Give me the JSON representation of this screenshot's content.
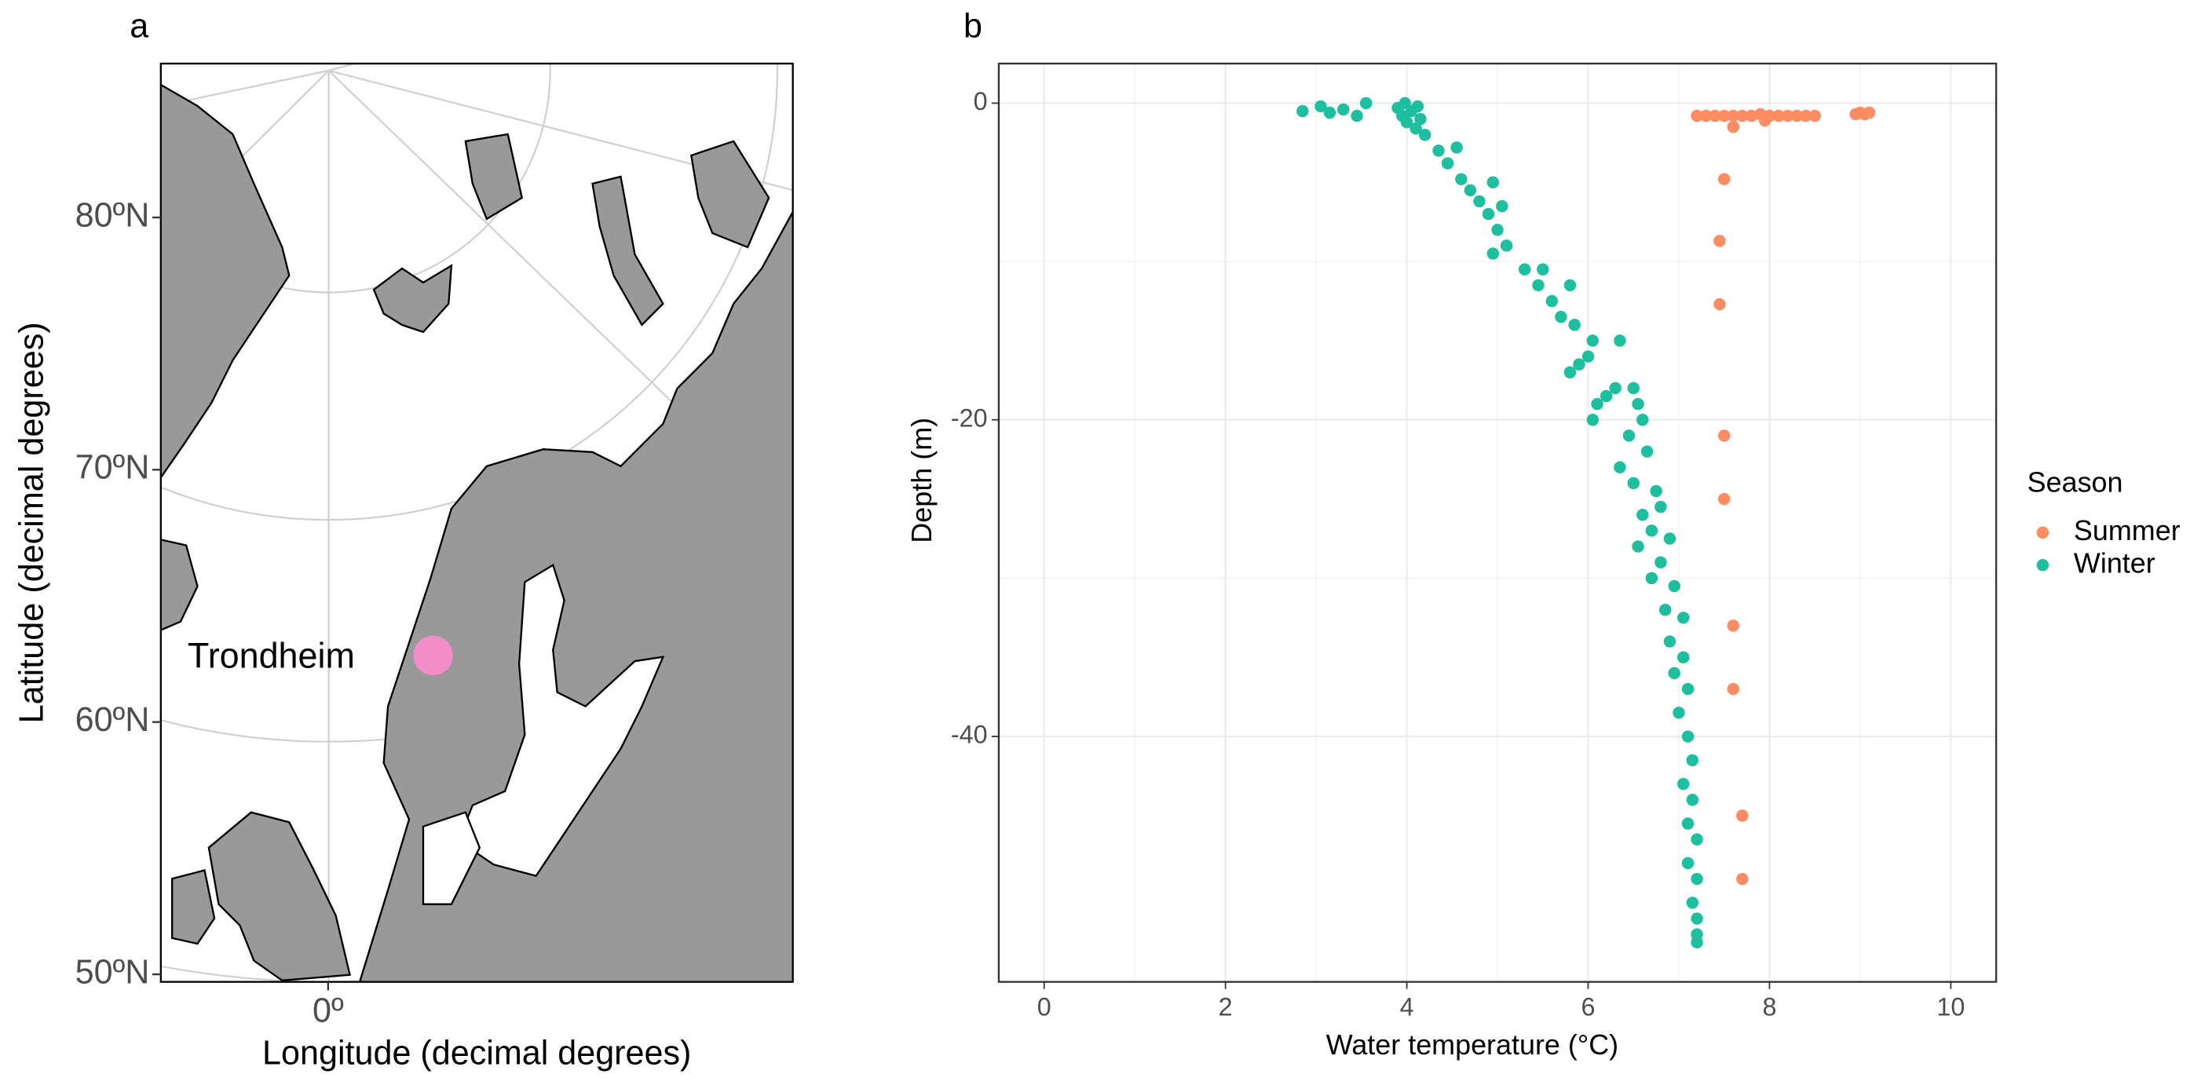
{
  "chart_data": [
    {
      "type": "map",
      "panel": "a",
      "ylabel": "Latitude (decimal degrees)",
      "xlabel": "Longitude (decimal degrees)",
      "ylim": [
        49.7,
        86.1
      ],
      "yticks": [
        {
          "value": 50,
          "label": "50ºN"
        },
        {
          "value": 60,
          "label": "60ºN"
        },
        {
          "value": 70,
          "label": "70ºN"
        },
        {
          "value": 80,
          "label": "80ºN"
        }
      ],
      "xlim": [
        -9,
        25
      ],
      "xticks": [
        {
          "value": 0,
          "label": "0º"
        }
      ],
      "annotation": "Trondheim",
      "land_color": "#999999",
      "marker_color": "#f48cc8"
    },
    {
      "type": "scatter",
      "panel": "b",
      "xlabel": "Water temperature (°C)",
      "ylabel": "Depth (m)",
      "legend_title": "Season",
      "legend": "right",
      "grid": true,
      "xlim": [
        -0.5,
        10.5
      ],
      "xticks": [
        0,
        2,
        4,
        6,
        8,
        10
      ],
      "ylim": [
        -55.5,
        2.5
      ],
      "yticks": [
        -40,
        -20,
        0
      ],
      "series": [
        {
          "name": "Summer",
          "color": "#fc8d62",
          "x": [
            7.2,
            7.3,
            7.4,
            7.5,
            7.6,
            7.7,
            7.8,
            7.9,
            8.0,
            8.1,
            8.2,
            8.3,
            8.4,
            8.5,
            8.95,
            9.0,
            9.05,
            9.1,
            7.6,
            7.95,
            7.5,
            7.45,
            7.45,
            7.5,
            7.5,
            7.6,
            7.6,
            7.7,
            7.7
          ],
          "values": [
            -0.8,
            -0.8,
            -0.8,
            -0.8,
            -0.8,
            -0.8,
            -0.8,
            -0.7,
            -0.8,
            -0.8,
            -0.8,
            -0.8,
            -0.8,
            -0.8,
            -0.7,
            -0.6,
            -0.7,
            -0.6,
            -1.5,
            -1.1,
            -4.8,
            -8.7,
            -12.7,
            -21,
            -25,
            -33,
            -37,
            -45,
            -49
          ]
        },
        {
          "name": "Winter",
          "color": "#1dbf9f",
          "x": [
            2.85,
            3.05,
            3.15,
            3.3,
            3.45,
            3.55,
            3.9,
            3.95,
            4.0,
            4.05,
            4.1,
            3.98,
            4.12,
            4.15,
            4.2,
            4.35,
            4.45,
            4.55,
            4.6,
            4.7,
            4.8,
            4.9,
            4.95,
            5.0,
            5.05,
            4.95,
            5.1,
            5.3,
            5.45,
            5.5,
            5.6,
            5.8,
            5.7,
            5.85,
            6.05,
            6.0,
            5.9,
            5.8,
            6.35,
            6.1,
            6.2,
            6.05,
            6.3,
            6.5,
            6.55,
            6.45,
            6.6,
            6.35,
            6.65,
            6.5,
            6.75,
            6.6,
            6.8,
            6.7,
            6.55,
            6.9,
            6.8,
            6.7,
            6.95,
            6.85,
            7.05,
            6.9,
            7.05,
            6.95,
            7.1,
            7.0,
            7.1,
            7.15,
            7.05,
            7.15,
            7.1,
            7.2,
            7.1,
            7.2,
            7.15,
            7.2,
            7.2,
            7.2
          ],
          "values": [
            -0.5,
            -0.2,
            -0.6,
            -0.4,
            -0.8,
            0.0,
            -0.3,
            -0.8,
            -1.2,
            -0.5,
            -1.6,
            0.0,
            -0.2,
            -1.0,
            -2.0,
            -3.0,
            -3.8,
            -2.8,
            -4.8,
            -5.5,
            -6.2,
            -7.0,
            -5.0,
            -8.0,
            -6.5,
            -9.5,
            -9.0,
            -10.5,
            -11.5,
            -10.5,
            -12.5,
            -11.5,
            -13.5,
            -14.0,
            -15.0,
            -16.0,
            -16.5,
            -17.0,
            -15.0,
            -19.0,
            -18.5,
            -20.0,
            -18.0,
            -18.0,
            -19.0,
            -21.0,
            -20.0,
            -23.0,
            -22.0,
            -24.0,
            -24.5,
            -26.0,
            -25.5,
            -27.0,
            -28.0,
            -27.5,
            -29.0,
            -30.0,
            -30.5,
            -32.0,
            -32.5,
            -34.0,
            -35.0,
            -36.0,
            -37.0,
            -38.5,
            -40.0,
            -41.5,
            -43.0,
            -44.0,
            -45.5,
            -46.5,
            -48.0,
            -49.0,
            -50.5,
            -51.5,
            -52.5,
            -53.0
          ]
        }
      ]
    }
  ]
}
